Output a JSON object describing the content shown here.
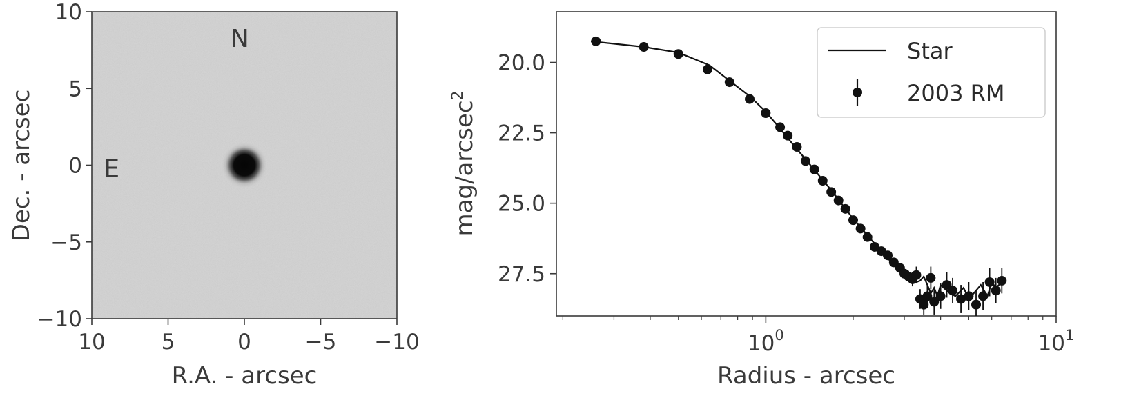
{
  "chart_data": [
    {
      "type": "heatmap",
      "xlabel": "R.A. - arcsec",
      "ylabel": "Dec. - arcsec",
      "xlim": [
        10,
        -10
      ],
      "ylim": [
        -10,
        10
      ],
      "xticks": [
        10,
        5,
        0,
        -5,
        -10
      ],
      "yticks": [
        10,
        5,
        0,
        -5,
        -10
      ],
      "xtick_labels": [
        "10",
        "5",
        "0",
        "−5",
        "−10"
      ],
      "ytick_labels": [
        "10",
        "5",
        "0",
        "−5",
        "−10"
      ],
      "annotations": [
        {
          "text": "N",
          "x": 0.3,
          "y": 8.3
        },
        {
          "text": "E",
          "x": 8.7,
          "y": -0.2
        }
      ],
      "source": {
        "x": 0.0,
        "y": 0.0
      },
      "colormap": "gray_r",
      "background_color": "#d3d3d3"
    },
    {
      "type": "line",
      "xscale": "log",
      "xlabel": "Radius - arcsec",
      "ylabel": "mag/arcsec",
      "ylabel_superscript": "2",
      "xlim": [
        0.19,
        10
      ],
      "ylim": [
        29.0,
        18.2
      ],
      "y_inverted": true,
      "yticks": [
        20.0,
        22.5,
        25.0,
        27.5
      ],
      "ytick_labels": [
        "20.0",
        "22.5",
        "25.0",
        "27.5"
      ],
      "xticks": [
        1,
        10
      ],
      "xtick_labels": [
        {
          "base": "10",
          "exp": "0"
        },
        {
          "base": "10",
          "exp": "1"
        }
      ],
      "legend": {
        "position": "top-right",
        "entries": [
          {
            "label": "Star",
            "marker": "line"
          },
          {
            "label": "2003 RM",
            "marker": "errorbar-point"
          }
        ]
      },
      "series": [
        {
          "name": "Star",
          "style": "line",
          "color": "#111111",
          "x": [
            0.25,
            0.38,
            0.5,
            0.64,
            0.75,
            0.88,
            1.0,
            1.12,
            1.25,
            1.4,
            1.55,
            1.7,
            1.85,
            2.0,
            2.2,
            2.4,
            2.6,
            2.8,
            3.0,
            3.1,
            3.2,
            3.3,
            3.4,
            3.5,
            3.6,
            3.7,
            3.8,
            3.9,
            4.0,
            4.2,
            4.5,
            4.8,
            5.0,
            5.2,
            5.5,
            5.8,
            6.0,
            6.2,
            6.5
          ],
          "y": [
            19.25,
            19.45,
            19.65,
            20.1,
            20.65,
            21.2,
            21.75,
            22.35,
            22.95,
            23.55,
            24.1,
            24.6,
            25.1,
            25.55,
            26.05,
            26.5,
            26.9,
            27.25,
            27.55,
            27.7,
            27.6,
            27.8,
            27.75,
            27.6,
            27.9,
            28.2,
            28.0,
            28.3,
            27.9,
            28.1,
            28.3,
            28.0,
            28.4,
            28.2,
            27.9,
            28.3,
            27.8,
            28.0,
            27.8
          ]
        },
        {
          "name": "2003 RM",
          "style": "errorbar-point",
          "color": "#111111",
          "x": [
            0.26,
            0.38,
            0.5,
            0.63,
            0.75,
            0.88,
            1.0,
            1.12,
            1.19,
            1.28,
            1.37,
            1.47,
            1.57,
            1.68,
            1.78,
            1.88,
            2.0,
            2.12,
            2.24,
            2.37,
            2.5,
            2.63,
            2.76,
            2.9,
            3.0,
            3.1,
            3.2,
            3.3,
            3.4,
            3.5,
            3.6,
            3.7,
            3.8,
            4.0,
            4.2,
            4.4,
            4.7,
            5.0,
            5.3,
            5.6,
            5.9,
            6.2,
            6.5
          ],
          "y": [
            19.25,
            19.45,
            19.7,
            20.25,
            20.7,
            21.3,
            21.8,
            22.3,
            22.6,
            23.0,
            23.5,
            23.8,
            24.2,
            24.6,
            24.9,
            25.2,
            25.6,
            25.9,
            26.2,
            26.55,
            26.7,
            26.85,
            27.1,
            27.3,
            27.5,
            27.6,
            27.7,
            27.55,
            28.4,
            28.6,
            28.3,
            27.65,
            28.5,
            28.3,
            27.9,
            28.1,
            28.4,
            28.3,
            28.6,
            28.3,
            27.8,
            28.1,
            27.75
          ],
          "yerr": [
            0.05,
            0.05,
            0.05,
            0.05,
            0.05,
            0.05,
            0.05,
            0.05,
            0.05,
            0.05,
            0.05,
            0.05,
            0.05,
            0.05,
            0.05,
            0.05,
            0.05,
            0.05,
            0.05,
            0.05,
            0.08,
            0.1,
            0.1,
            0.12,
            0.15,
            0.2,
            0.25,
            0.3,
            0.35,
            0.35,
            0.4,
            0.4,
            0.45,
            0.45,
            0.45,
            0.45,
            0.5,
            0.5,
            0.5,
            0.5,
            0.5,
            0.45,
            0.45
          ]
        }
      ]
    }
  ]
}
